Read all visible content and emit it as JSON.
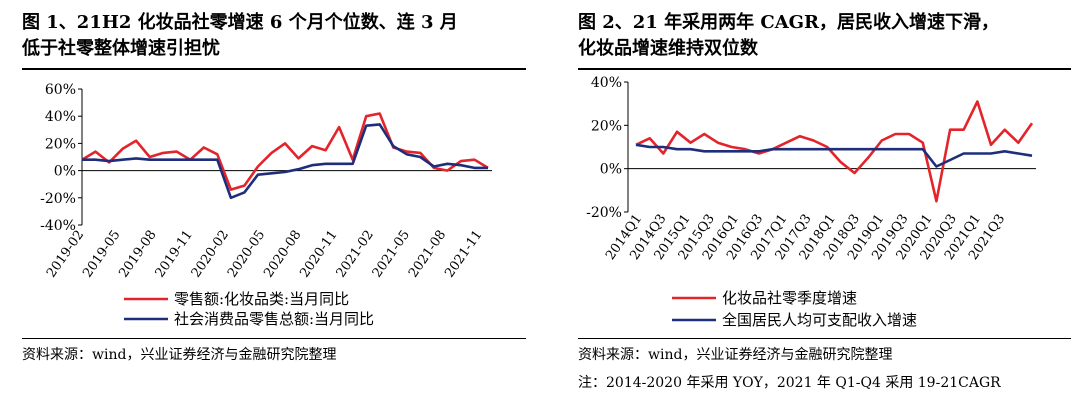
{
  "left": {
    "title_line1": "图 1、21H2 化妆品社零增速 6 个月个位数、连 3 月",
    "title_line2": "低于社零整体增速引担忧",
    "source": "资料来源：wind，兴业证券经济与金融研究院整理",
    "chart_data": {
      "type": "line",
      "ylim": [
        -40,
        60
      ],
      "yticks": [
        "60%",
        "40%",
        "20%",
        "0%",
        "-20%",
        "-40%"
      ],
      "ytick_values": [
        60,
        40,
        20,
        0,
        -20,
        -40
      ],
      "x_labels": [
        "2019-02",
        "2019-05",
        "2019-08",
        "2019-11",
        "2020-02",
        "2020-05",
        "2020-08",
        "2020-11",
        "2021-02",
        "2021-05",
        "2021-08",
        "2021-11"
      ],
      "grid": false,
      "legend_position": "bottom",
      "series": [
        {
          "name": "零售额:化妆品类:当月同比",
          "color": "#e3242b",
          "values": [
            8,
            14,
            6,
            16,
            22,
            10,
            13,
            14,
            8,
            17,
            12,
            -14,
            -11,
            3,
            13,
            20,
            9,
            18,
            15,
            32,
            8,
            40,
            42,
            17,
            14,
            13,
            2,
            0,
            7,
            8,
            2
          ]
        },
        {
          "name": "社会消费品零售总额:当月同比",
          "color": "#1f2e7a",
          "values": [
            8,
            8,
            7,
            8,
            9,
            8,
            8,
            8,
            8,
            8,
            8,
            -20,
            -16,
            -3,
            -2,
            -1,
            1,
            4,
            5,
            5,
            5,
            33,
            34,
            18,
            12,
            10,
            3,
            5,
            4,
            2,
            2
          ]
        }
      ]
    }
  },
  "right": {
    "title_line1": "图 2、21 年采用两年 CAGR，居民收入增速下滑，",
    "title_line2": "化妆品增速维持双位数",
    "source": "资料来源：wind，兴业证券经济与金融研究院整理",
    "note": "注：2014-2020 年采用 YOY，2021 年 Q1-Q4 采用 19-21CAGR",
    "chart_data": {
      "type": "line",
      "ylim": [
        -20,
        40
      ],
      "yticks": [
        "40%",
        "20%",
        "0%",
        "-20%"
      ],
      "ytick_values": [
        40,
        20,
        0,
        -20
      ],
      "x_labels": [
        "2014Q1",
        "2014Q3",
        "2015Q1",
        "2015Q3",
        "2016Q1",
        "2016Q3",
        "2017Q1",
        "2017Q3",
        "2018Q1",
        "2018Q3",
        "2019Q1",
        "2019Q3",
        "2020Q1",
        "2020Q3",
        "2021Q1",
        "2021Q3"
      ],
      "grid": false,
      "legend_position": "bottom",
      "series": [
        {
          "name": "化妆品社零季度增速",
          "color": "#e3242b",
          "values": [
            11,
            14,
            7,
            17,
            12,
            16,
            12,
            10,
            9,
            7,
            9,
            12,
            15,
            13,
            10,
            3,
            -2,
            5,
            13,
            16,
            16,
            12,
            -15,
            18,
            18,
            31,
            11,
            18,
            12,
            21
          ]
        },
        {
          "name": "全国居民人均可支配收入增速",
          "color": "#1f2e7a",
          "values": [
            11,
            10,
            10,
            9,
            9,
            8,
            8,
            8,
            8,
            8,
            9,
            9,
            9,
            9,
            9,
            9,
            9,
            9,
            9,
            9,
            9,
            9,
            1,
            4,
            7,
            7,
            7,
            8,
            7,
            6
          ]
        }
      ]
    }
  }
}
